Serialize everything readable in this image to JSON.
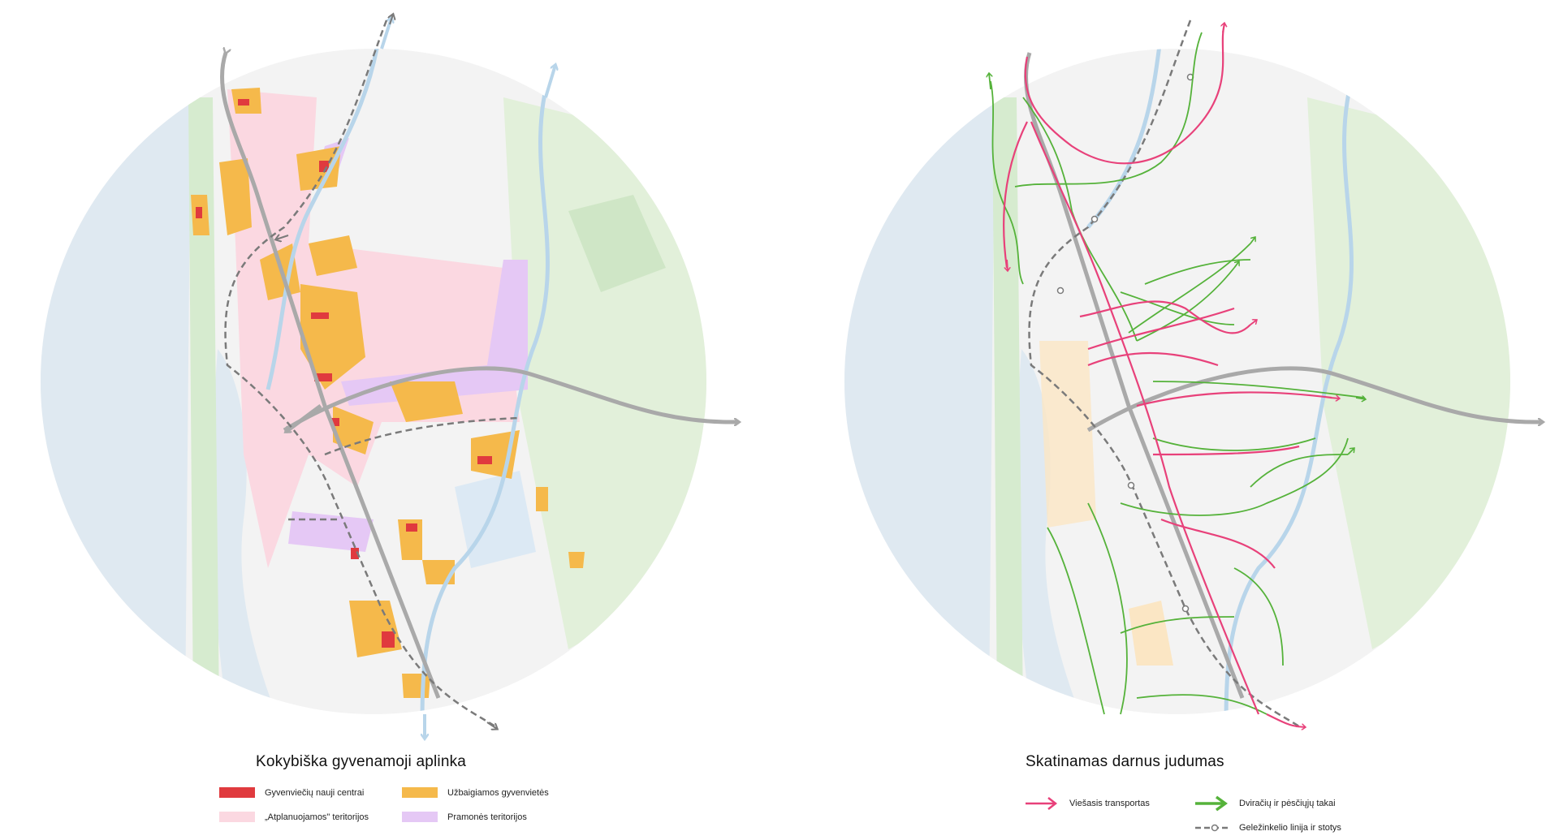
{
  "colors": {
    "water": "#dfe9f1",
    "green": "#d6ebcf",
    "light_bg": "#f1f1f1",
    "new_centers": "#e03a3e",
    "completing_settlements": "#f5b94b",
    "replanned_territories": "#fbd8e1",
    "industrial_territories": "#e5c8f5",
    "public_transport": "#e8417a",
    "cycling_walking": "#55b23a",
    "railway": "#7a7a7a",
    "main_road": "#a9a9a9",
    "river": "#b8d5ea"
  },
  "left_map": {
    "title": "Kokybiška gyvenamoji aplinka",
    "legend": [
      {
        "label": "Gyvenviečių nauji centrai",
        "color_key": "new_centers",
        "icon": "solid-swatch"
      },
      {
        "label": "Užbaigiamos gyvenvietės",
        "color_key": "completing_settlements",
        "icon": "solid-swatch"
      },
      {
        "label": "„Atplanuojamos\" teritorijos",
        "color_key": "replanned_territories",
        "icon": "solid-swatch"
      },
      {
        "label": "Pramonės teritorijos",
        "color_key": "industrial_territories",
        "icon": "solid-swatch"
      }
    ]
  },
  "right_map": {
    "title": "Skatinamas darnus judumas",
    "legend": [
      {
        "label": "Viešasis transportas",
        "color_key": "public_transport",
        "icon": "arrow-line"
      },
      {
        "label": "Dviračių ir pėsčiųjų takai",
        "color_key": "cycling_walking",
        "icon": "arrow-line"
      },
      {
        "label": "Geležinkelio linija ir stotys",
        "color_key": "railway",
        "icon": "dashed-line-station"
      }
    ]
  }
}
